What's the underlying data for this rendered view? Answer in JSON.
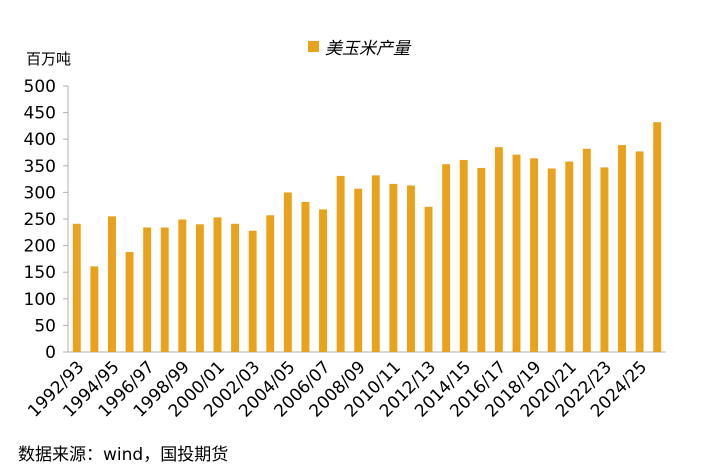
{
  "chart_data": {
    "type": "bar",
    "unit_label": "百万吨",
    "source": "数据来源：wind，国投期货",
    "color": "#E8A21B",
    "ylim": [
      0,
      500
    ],
    "yticks": [
      0,
      50,
      100,
      150,
      200,
      250,
      300,
      350,
      400,
      450,
      500
    ],
    "grid": false,
    "legend_position": "top-center",
    "series": [
      {
        "name": "美玉米产量",
        "values": [
          241,
          161,
          255,
          188,
          234,
          234,
          249,
          240,
          253,
          241,
          228,
          257,
          300,
          282,
          268,
          331,
          307,
          332,
          316,
          313,
          273,
          353,
          361,
          346,
          385,
          371,
          364,
          345,
          358,
          382,
          347,
          389,
          377,
          432
        ]
      }
    ],
    "categories": [
      "1992/93",
      "1993/94",
      "1994/95",
      "1995/96",
      "1996/97",
      "1997/98",
      "1998/99",
      "1999/00",
      "2000/01",
      "2001/02",
      "2002/03",
      "2003/04",
      "2004/05",
      "2005/06",
      "2006/07",
      "2007/08",
      "2008/09",
      "2009/10",
      "2010/11",
      "2011/12",
      "2012/13",
      "2013/14",
      "2014/15",
      "2015/16",
      "2016/17",
      "2017/18",
      "2018/19",
      "2019/20",
      "2020/21",
      "2021/22",
      "2022/23",
      "2023/24",
      "2024/25",
      "2025/26"
    ],
    "x_tick_labels": [
      "1992/93",
      "1994/95",
      "1996/97",
      "1998/99",
      "2000/01",
      "2002/03",
      "2004/05",
      "2006/07",
      "2008/09",
      "2010/11",
      "2012/13",
      "2014/15",
      "2016/17",
      "2018/19",
      "2020/21",
      "2022/23",
      "2024/25"
    ]
  }
}
